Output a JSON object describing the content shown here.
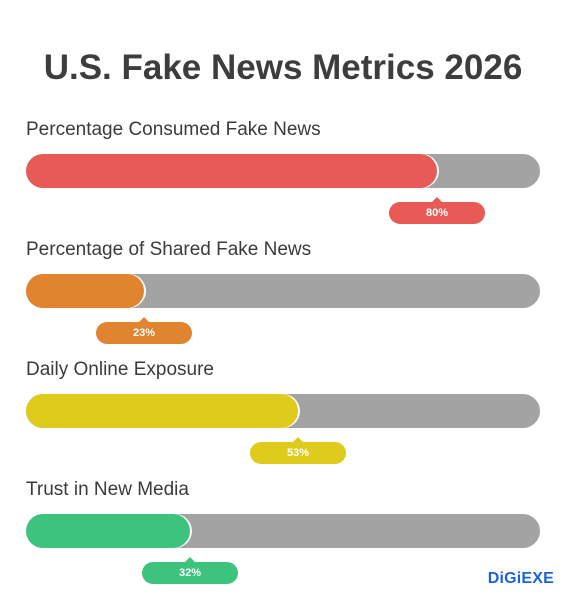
{
  "brand": "DiGiEXE",
  "chart_data": {
    "type": "bar",
    "title": "U.S. Fake News Metrics 2026",
    "categories": [
      "Percentage Consumed Fake News",
      "Percentage of Shared Fake News",
      "Daily Online Exposure",
      "Trust in New Media"
    ],
    "values": [
      80,
      23,
      53,
      32
    ],
    "value_labels": [
      "80%",
      "23%",
      "53%",
      "32%"
    ],
    "colors": [
      "#e85a56",
      "#e08430",
      "#dfcb1b",
      "#3ec37f"
    ],
    "track_color": "#a3a3a3",
    "xlim": [
      0,
      100
    ],
    "unit": "%",
    "grid": false,
    "legend": "none"
  }
}
